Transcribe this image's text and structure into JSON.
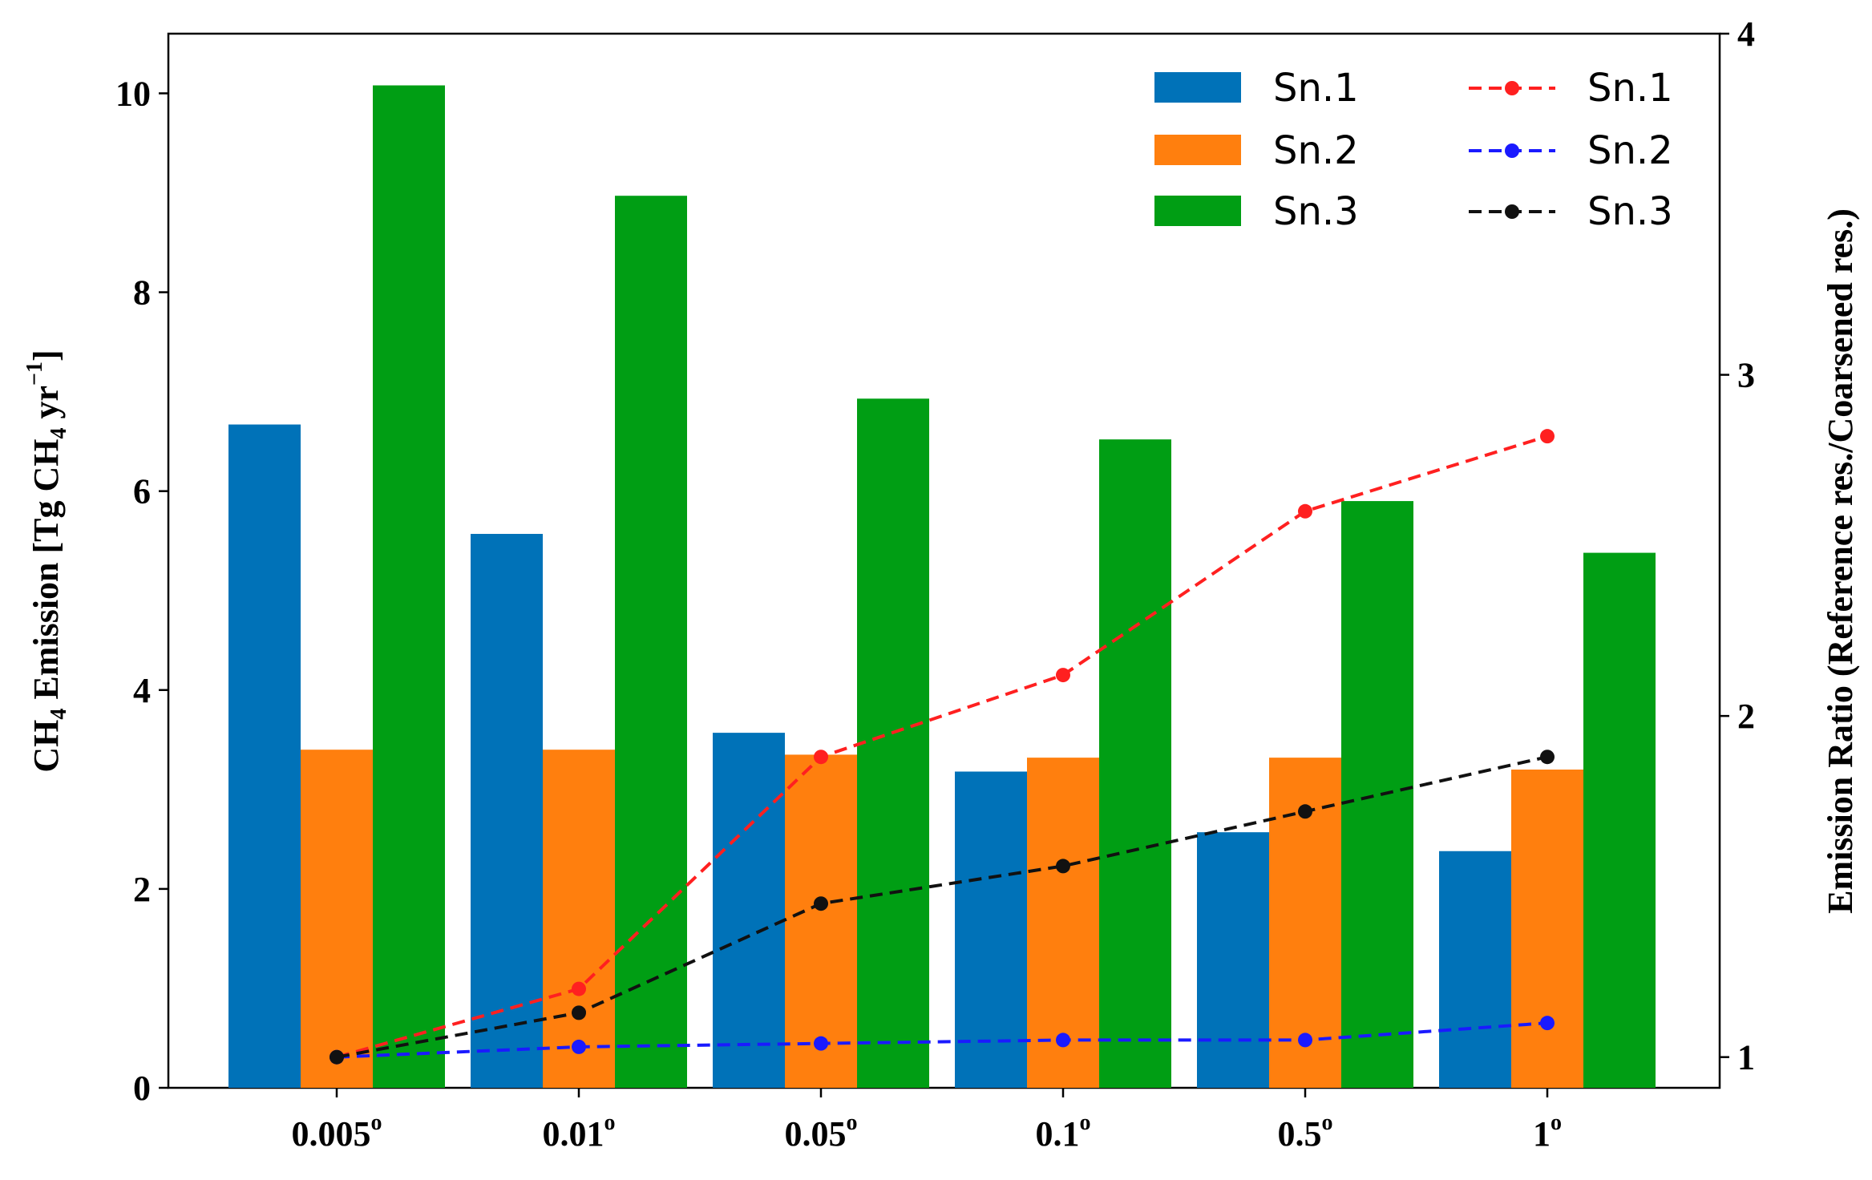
{
  "chart_data": {
    "type": "bar",
    "categories": [
      "0.005°",
      "0.01°",
      "0.05°",
      "0.1°",
      "0.5°",
      "1°"
    ],
    "category_labels": [
      {
        "base": "0.005",
        "sup": "o"
      },
      {
        "base": "0.01",
        "sup": "o"
      },
      {
        "base": "0.05",
        "sup": "o"
      },
      {
        "base": "0.1",
        "sup": "o"
      },
      {
        "base": "0.5",
        "sup": "o"
      },
      {
        "base": "1",
        "sup": "o"
      }
    ],
    "bar_series": [
      {
        "name": "Sn.1",
        "color": "#0072b8",
        "values": [
          6.67,
          5.57,
          3.57,
          3.18,
          2.57,
          2.38
        ]
      },
      {
        "name": "Sn.2",
        "color": "#ff7f0e",
        "values": [
          3.4,
          3.4,
          3.35,
          3.32,
          3.32,
          3.2
        ]
      },
      {
        "name": "Sn.3",
        "color": "#009e14",
        "values": [
          10.08,
          8.97,
          6.93,
          6.52,
          5.9,
          5.38
        ]
      }
    ],
    "line_series": [
      {
        "name": "Sn.1",
        "color": "#ff2020",
        "values": [
          1.0,
          1.2,
          1.88,
          2.12,
          2.6,
          2.82
        ]
      },
      {
        "name": "Sn.2",
        "color": "#1a1aff",
        "values": [
          1.0,
          1.03,
          1.04,
          1.05,
          1.05,
          1.1
        ]
      },
      {
        "name": "Sn.3",
        "color": "#111111",
        "values": [
          1.0,
          1.13,
          1.45,
          1.56,
          1.72,
          1.88
        ]
      }
    ],
    "y_left": {
      "label_parts": [
        "CH",
        "4",
        " Emission [Tg CH",
        "4",
        " yr",
        "−1",
        "]"
      ],
      "ylim": [
        0,
        10.6
      ],
      "ticks": [
        0,
        2,
        4,
        6,
        8,
        10
      ]
    },
    "y_right": {
      "label": "Emission Ratio (Reference res./Coarsened res.)",
      "ylim": [
        0.91,
        4.0
      ],
      "ticks": [
        1,
        2,
        3,
        4
      ]
    },
    "legend": {
      "position": "top-right",
      "columns": 2
    }
  }
}
